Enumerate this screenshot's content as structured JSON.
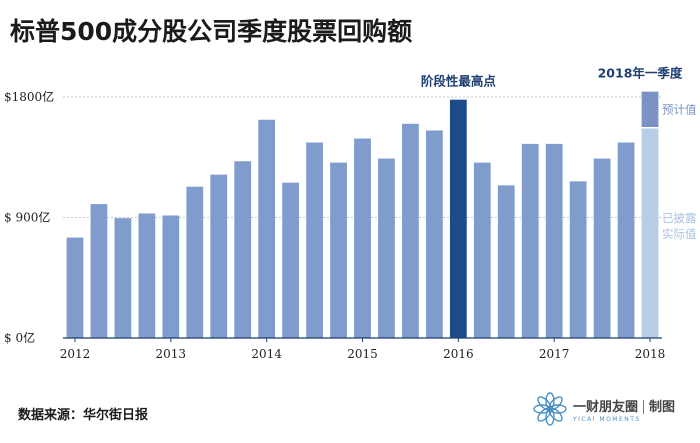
{
  "title": "标普500成分股公司季度股票回购额",
  "source": "数据来源：华尔街日报",
  "brand": {
    "name": "一财朋友圈",
    "suffix": "制图",
    "sub": "YICAI MOMENTS"
  },
  "colors": {
    "bar": "#7f9ccd",
    "highlight": "#1f4a8a",
    "estimate": "#7a93c4",
    "actual": "#b8cde6",
    "grid": "#c8c8c8",
    "axis": "#1f3f73",
    "text": "#222222"
  },
  "chart_data": {
    "type": "bar",
    "title": "标普500成分股公司季度股票回购额",
    "ylim": [
      0,
      1800
    ],
    "yticks": [
      0,
      900,
      1800
    ],
    "ytick_labels": [
      "$ 0亿",
      "$ 900亿",
      "$1800亿"
    ],
    "year_labels": [
      {
        "label": "2012",
        "index": 0
      },
      {
        "label": "2013",
        "index": 4
      },
      {
        "label": "2014",
        "index": 8
      },
      {
        "label": "2015",
        "index": 12
      },
      {
        "label": "2016",
        "index": 16
      },
      {
        "label": "2017",
        "index": 20
      },
      {
        "label": "2018",
        "index": 24
      }
    ],
    "values": [
      750,
      1000,
      895,
      930,
      915,
      1130,
      1220,
      1320,
      1630,
      1160,
      1460,
      1310,
      1490,
      1340,
      1600,
      1550,
      1780,
      1310,
      1140,
      1450,
      1450,
      1170,
      1340,
      1460
    ],
    "highlight_index": 16,
    "highlight_label": "阶段性最高点",
    "final_bar": {
      "label": "2018年一季度",
      "actual": 1570,
      "estimate_total": 1840,
      "estimate_label": "预计值",
      "actual_label_line1": "已披露",
      "actual_label_line2": "实际值"
    }
  }
}
